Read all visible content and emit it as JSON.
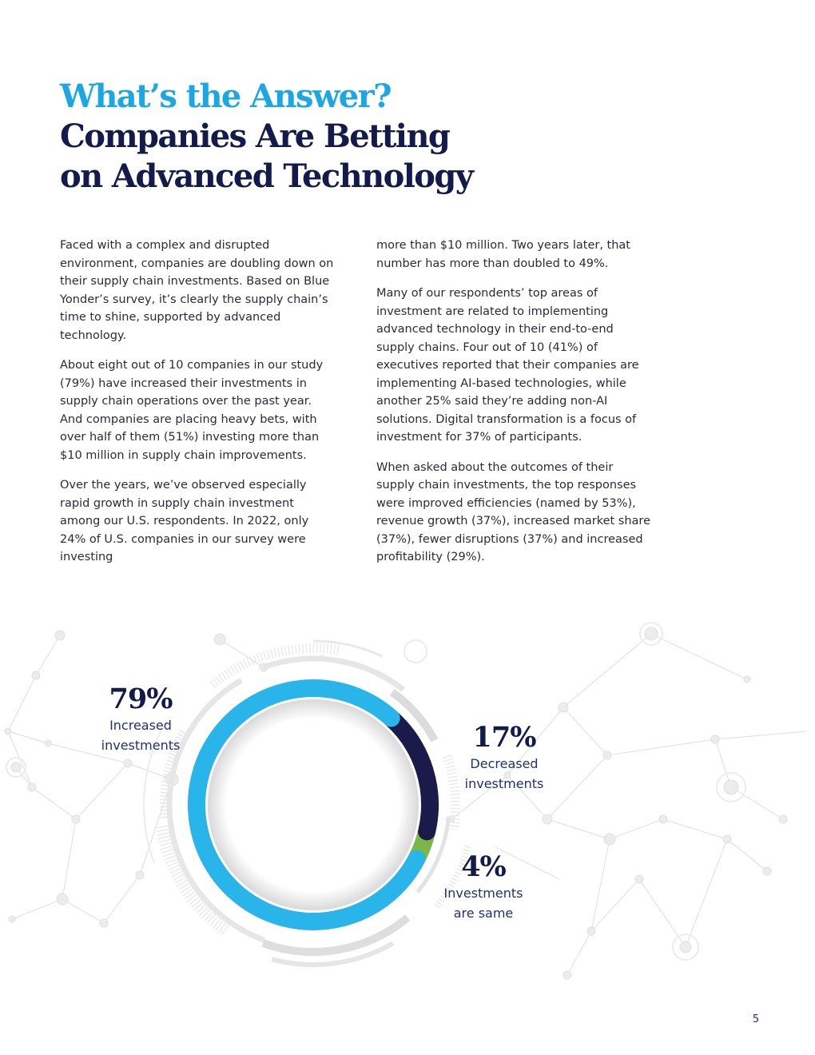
{
  "title": {
    "line1": "What’s the Answer?",
    "line2": "Companies Are Betting",
    "line3": "on Advanced Technology"
  },
  "body": {
    "left": [
      "Faced with a complex and disrupted environment, companies are doubling down on their supply chain investments. Based on Blue Yonder’s survey, it’s clearly the supply chain’s time to shine, supported by advanced technology.",
      "About eight out of 10 companies in our study (79%) have increased their investments in supply chain operations over the past year. And companies are placing heavy bets, with over half of them (51%) investing more than $10 million in supply chain improvements.",
      "Over the years, we’ve observed especially rapid growth in supply chain investment among our U.S. respondents. In 2022, only 24% of U.S. companies in our survey were investing"
    ],
    "right": [
      "more than $10 million. Two years later, that number has more than doubled to 49%.",
      "Many of our respondents’ top areas of investment are related to implementing advanced technology in their end-to-end supply chains. Four out of 10 (41%) of executives reported that their companies are implementing AI-based technologies, while another 25% said they’re adding non-AI solutions. Digital transformation is a focus of investment for 37% of participants.",
      "When asked about the outcomes of their supply chain investments, the top responses were improved efficiencies (named by 53%), revenue growth (37%), increased market share (37%), fewer disruptions (37%) and increased profitability (29%)."
    ]
  },
  "chart_data": {
    "type": "pie",
    "title": "",
    "categories": [
      "Increased investments",
      "Decreased investments",
      "Investments are same"
    ],
    "values": [
      79,
      17,
      4
    ],
    "colors": [
      "#29b4ea",
      "#1a1b4b",
      "#7ab648"
    ],
    "labels": [
      {
        "pct": "79%",
        "line1": "Increased",
        "line2": "investments"
      },
      {
        "pct": "17%",
        "line1": "Decreased",
        "line2": "investments"
      },
      {
        "pct": "4%",
        "line1": "Investments",
        "line2": "are same"
      }
    ]
  },
  "page_number": "5"
}
